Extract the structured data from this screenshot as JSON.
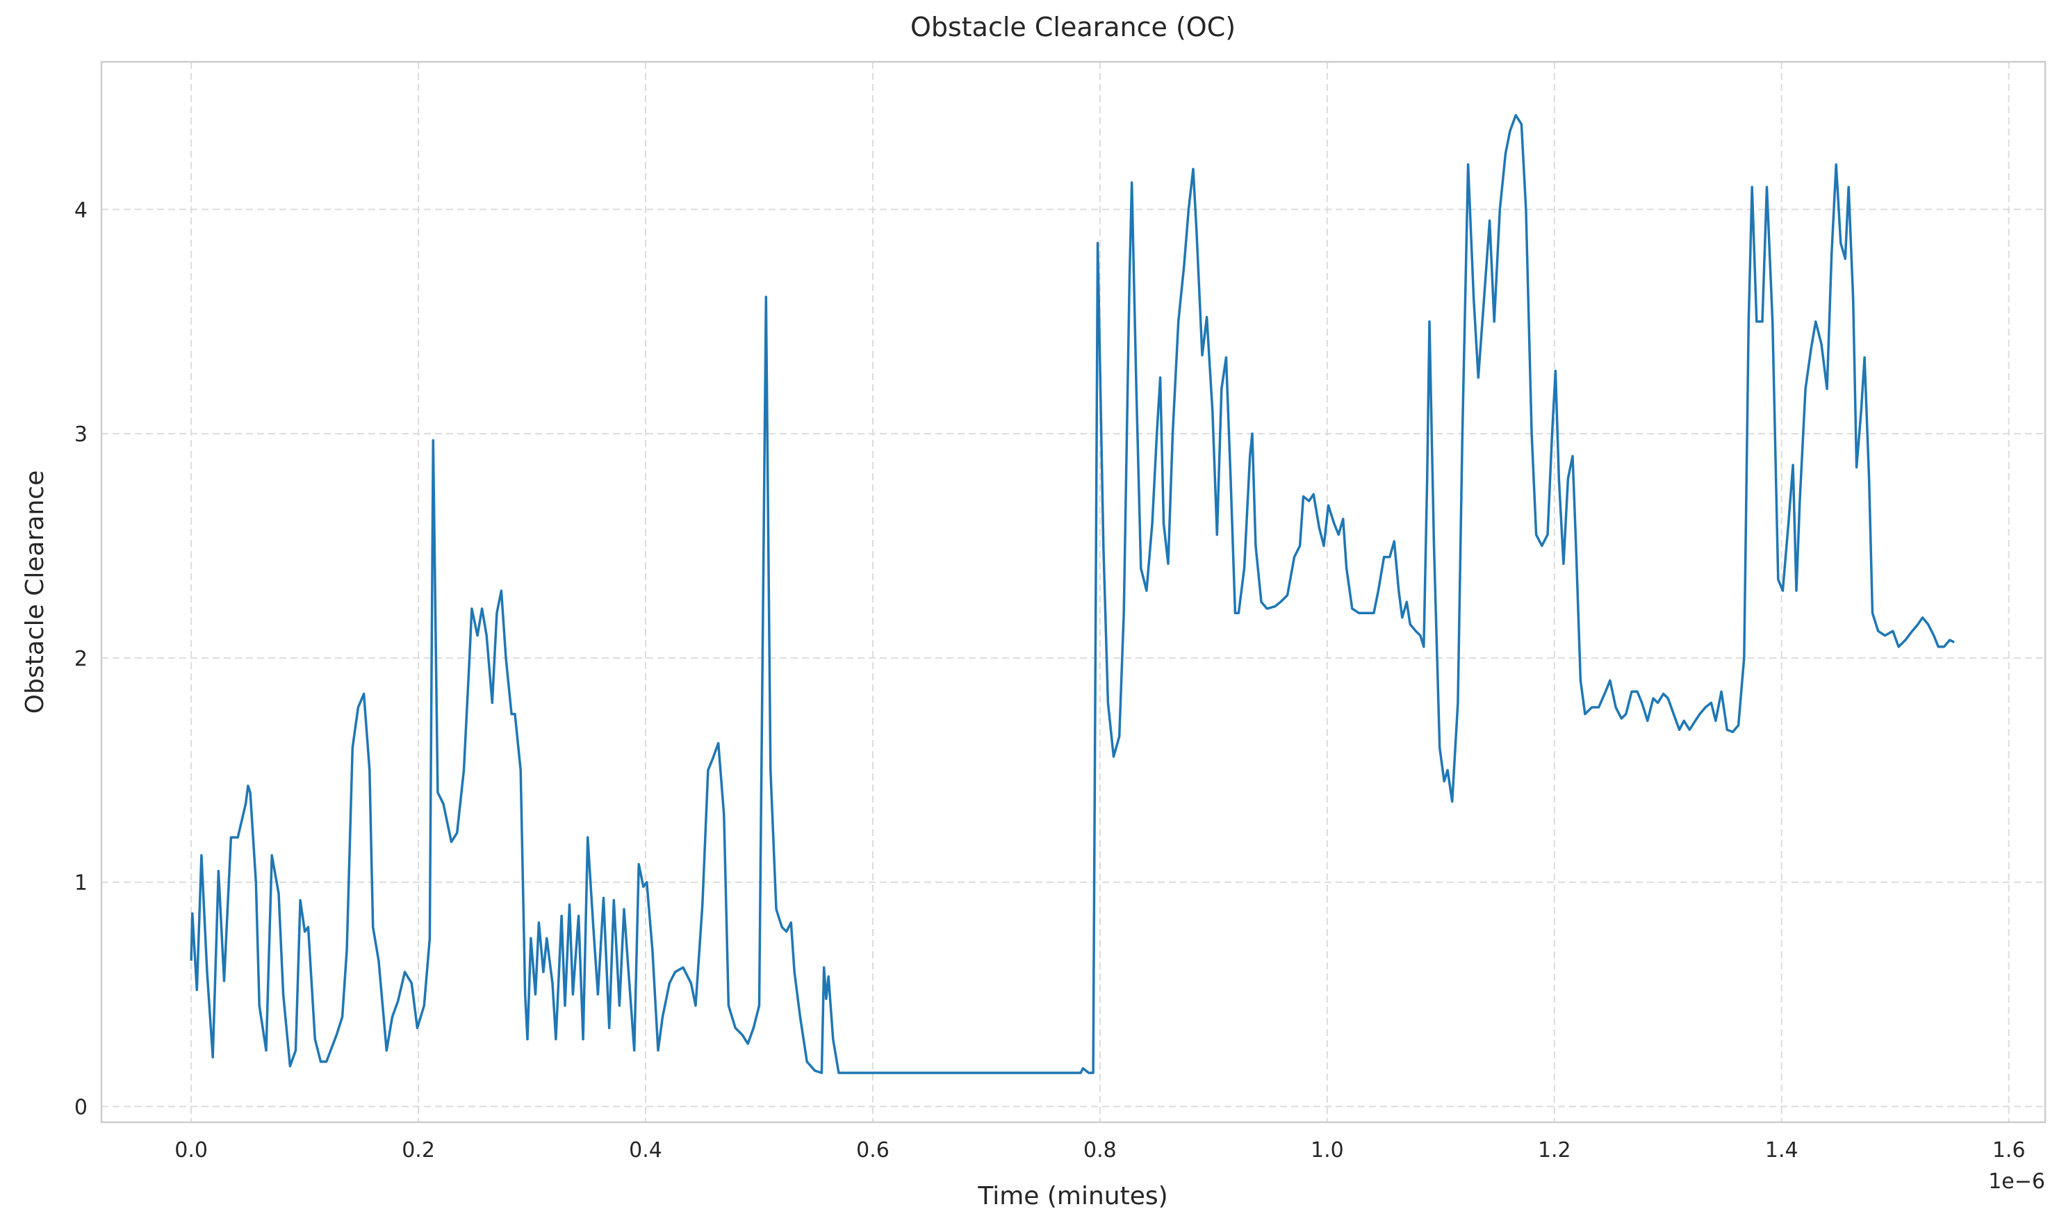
{
  "chart_data": {
    "type": "line",
    "title": "Obstacle Clearance (OC)",
    "x_label": "Time (minutes)",
    "y_label": "Obstacle Clearance",
    "x_offset_label": "1e−6",
    "xlim": [
      -0.079,
      1.632
    ],
    "ylim": [
      -0.07,
      4.658
    ],
    "xticks": [
      {
        "value": 0,
        "label": "0.0"
      },
      {
        "value": 0.2,
        "label": "0.2"
      },
      {
        "value": 0.4,
        "label": "0.4"
      },
      {
        "value": 0.6,
        "label": "0.6"
      },
      {
        "value": 0.8,
        "label": "0.8"
      },
      {
        "value": 1.0,
        "label": "1.0"
      },
      {
        "value": 1.2,
        "label": "1.2"
      },
      {
        "value": 1.4,
        "label": "1.4"
      },
      {
        "value": 1.6,
        "label": "1.6"
      }
    ],
    "yticks": [
      0,
      1,
      2,
      3,
      4
    ],
    "grid": true,
    "x": [
      0.0,
      0.001,
      0.005,
      0.009,
      0.014,
      0.019,
      0.024,
      0.029,
      0.035,
      0.041,
      0.048,
      0.05,
      0.052,
      0.057,
      0.06,
      0.066,
      0.071,
      0.077,
      0.081,
      0.087,
      0.092,
      0.096,
      0.1,
      0.103,
      0.109,
      0.114,
      0.119,
      0.128,
      0.133,
      0.137,
      0.142,
      0.147,
      0.152,
      0.157,
      0.16,
      0.165,
      0.172,
      0.177,
      0.182,
      0.188,
      0.194,
      0.199,
      0.205,
      0.21,
      0.213,
      0.217,
      0.222,
      0.229,
      0.234,
      0.24,
      0.245,
      0.247,
      0.252,
      0.256,
      0.26,
      0.265,
      0.269,
      0.273,
      0.277,
      0.282,
      0.285,
      0.29,
      0.294,
      0.296,
      0.299,
      0.303,
      0.306,
      0.31,
      0.313,
      0.318,
      0.321,
      0.326,
      0.329,
      0.333,
      0.336,
      0.341,
      0.345,
      0.349,
      0.354,
      0.358,
      0.363,
      0.368,
      0.372,
      0.377,
      0.381,
      0.385,
      0.39,
      0.394,
      0.398,
      0.401,
      0.406,
      0.411,
      0.415,
      0.421,
      0.426,
      0.433,
      0.44,
      0.444,
      0.45,
      0.455,
      0.459,
      0.464,
      0.469,
      0.473,
      0.479,
      0.485,
      0.49,
      0.495,
      0.5,
      0.506,
      0.51,
      0.515,
      0.52,
      0.524,
      0.528,
      0.531,
      0.536,
      0.542,
      0.549,
      0.555,
      0.557,
      0.559,
      0.561,
      0.565,
      0.57,
      0.644,
      0.713,
      0.783,
      0.785,
      0.79,
      0.794,
      0.798,
      0.803,
      0.807,
      0.812,
      0.817,
      0.821,
      0.826,
      0.828,
      0.832,
      0.836,
      0.841,
      0.846,
      0.85,
      0.853,
      0.856,
      0.86,
      0.864,
      0.869,
      0.874,
      0.878,
      0.882,
      0.885,
      0.89,
      0.894,
      0.899,
      0.903,
      0.907,
      0.911,
      0.915,
      0.919,
      0.922,
      0.927,
      0.932,
      0.934,
      0.937,
      0.942,
      0.947,
      0.954,
      0.959,
      0.965,
      0.971,
      0.976,
      0.979,
      0.984,
      0.988,
      0.993,
      0.997,
      1.001,
      1.006,
      1.01,
      1.014,
      1.017,
      1.022,
      1.028,
      1.035,
      1.041,
      1.045,
      1.05,
      1.055,
      1.059,
      1.063,
      1.066,
      1.07,
      1.073,
      1.078,
      1.082,
      1.085,
      1.088,
      1.09,
      1.094,
      1.099,
      1.103,
      1.106,
      1.11,
      1.115,
      1.119,
      1.124,
      1.129,
      1.133,
      1.138,
      1.143,
      1.147,
      1.152,
      1.157,
      1.161,
      1.166,
      1.171,
      1.175,
      1.18,
      1.184,
      1.189,
      1.194,
      1.198,
      1.201,
      1.204,
      1.208,
      1.212,
      1.216,
      1.219,
      1.223,
      1.227,
      1.233,
      1.239,
      1.245,
      1.249,
      1.254,
      1.259,
      1.263,
      1.268,
      1.273,
      1.277,
      1.282,
      1.287,
      1.291,
      1.296,
      1.3,
      1.305,
      1.31,
      1.314,
      1.319,
      1.324,
      1.328,
      1.333,
      1.338,
      1.342,
      1.347,
      1.352,
      1.357,
      1.362,
      1.367,
      1.371,
      1.374,
      1.378,
      1.383,
      1.387,
      1.392,
      1.397,
      1.401,
      1.406,
      1.41,
      1.413,
      1.416,
      1.421,
      1.426,
      1.43,
      1.435,
      1.44,
      1.444,
      1.448,
      1.452,
      1.456,
      1.459,
      1.463,
      1.466,
      1.47,
      1.473,
      1.477,
      1.48,
      1.485,
      1.491,
      1.498,
      1.503,
      1.509,
      1.515,
      1.52,
      1.524,
      1.529,
      1.534,
      1.538,
      1.543,
      1.548,
      1.552
    ],
    "series": [
      {
        "name": "Obstacle Clearance",
        "color": "#1f77b4",
        "values": [
          0.65,
          0.86,
          0.52,
          1.12,
          0.6,
          0.22,
          1.05,
          0.56,
          1.2,
          1.2,
          1.35,
          1.43,
          1.4,
          1.0,
          0.45,
          0.25,
          1.12,
          0.95,
          0.5,
          0.18,
          0.25,
          0.92,
          0.78,
          0.8,
          0.3,
          0.2,
          0.2,
          0.32,
          0.4,
          0.7,
          1.6,
          1.78,
          1.84,
          1.5,
          0.8,
          0.65,
          0.25,
          0.4,
          0.47,
          0.6,
          0.55,
          0.35,
          0.45,
          0.75,
          2.97,
          1.4,
          1.35,
          1.18,
          1.22,
          1.5,
          2.0,
          2.22,
          2.1,
          2.22,
          2.1,
          1.8,
          2.2,
          2.3,
          2.0,
          1.75,
          1.75,
          1.5,
          0.5,
          0.3,
          0.75,
          0.5,
          0.82,
          0.6,
          0.75,
          0.55,
          0.3,
          0.85,
          0.45,
          0.9,
          0.5,
          0.85,
          0.3,
          1.2,
          0.8,
          0.5,
          0.93,
          0.35,
          0.92,
          0.45,
          0.88,
          0.6,
          0.25,
          1.08,
          0.98,
          1.0,
          0.7,
          0.25,
          0.4,
          0.55,
          0.6,
          0.62,
          0.55,
          0.45,
          0.9,
          1.5,
          1.55,
          1.62,
          1.3,
          0.45,
          0.35,
          0.32,
          0.28,
          0.35,
          0.45,
          3.61,
          1.5,
          0.88,
          0.8,
          0.78,
          0.82,
          0.6,
          0.4,
          0.2,
          0.16,
          0.15,
          0.62,
          0.48,
          0.58,
          0.3,
          0.15,
          0.15,
          0.15,
          0.15,
          0.17,
          0.15,
          0.15,
          3.85,
          2.5,
          1.8,
          1.56,
          1.65,
          2.2,
          3.7,
          4.12,
          3.2,
          2.4,
          2.3,
          2.6,
          3.0,
          3.25,
          2.6,
          2.42,
          3.0,
          3.5,
          3.75,
          4.0,
          4.18,
          3.9,
          3.35,
          3.52,
          3.1,
          2.55,
          3.2,
          3.34,
          2.8,
          2.2,
          2.2,
          2.4,
          2.9,
          3.0,
          2.5,
          2.25,
          2.22,
          2.23,
          2.25,
          2.28,
          2.45,
          2.5,
          2.72,
          2.7,
          2.73,
          2.58,
          2.5,
          2.68,
          2.6,
          2.55,
          2.62,
          2.4,
          2.22,
          2.2,
          2.2,
          2.2,
          2.3,
          2.45,
          2.45,
          2.52,
          2.3,
          2.18,
          2.25,
          2.15,
          2.12,
          2.1,
          2.05,
          2.8,
          3.5,
          2.5,
          1.6,
          1.45,
          1.5,
          1.36,
          1.8,
          3.0,
          4.2,
          3.6,
          3.25,
          3.6,
          3.95,
          3.5,
          4.0,
          4.25,
          4.35,
          4.42,
          4.38,
          4.0,
          3.0,
          2.55,
          2.5,
          2.55,
          3.0,
          3.28,
          2.8,
          2.42,
          2.8,
          2.9,
          2.5,
          1.9,
          1.75,
          1.78,
          1.78,
          1.85,
          1.9,
          1.78,
          1.73,
          1.75,
          1.85,
          1.85,
          1.8,
          1.72,
          1.82,
          1.8,
          1.84,
          1.82,
          1.75,
          1.68,
          1.72,
          1.68,
          1.72,
          1.75,
          1.78,
          1.8,
          1.72,
          1.85,
          1.68,
          1.67,
          1.7,
          2.0,
          3.5,
          4.1,
          3.5,
          3.5,
          4.1,
          3.5,
          2.35,
          2.3,
          2.6,
          2.86,
          2.3,
          2.7,
          3.2,
          3.38,
          3.5,
          3.4,
          3.2,
          3.8,
          4.2,
          3.85,
          3.78,
          4.1,
          3.6,
          2.85,
          3.1,
          3.34,
          2.8,
          2.2,
          2.12,
          2.1,
          2.12,
          2.05,
          2.08,
          2.12,
          2.15,
          2.18,
          2.15,
          2.1,
          2.05,
          2.05,
          2.08,
          2.07
        ]
      }
    ]
  }
}
